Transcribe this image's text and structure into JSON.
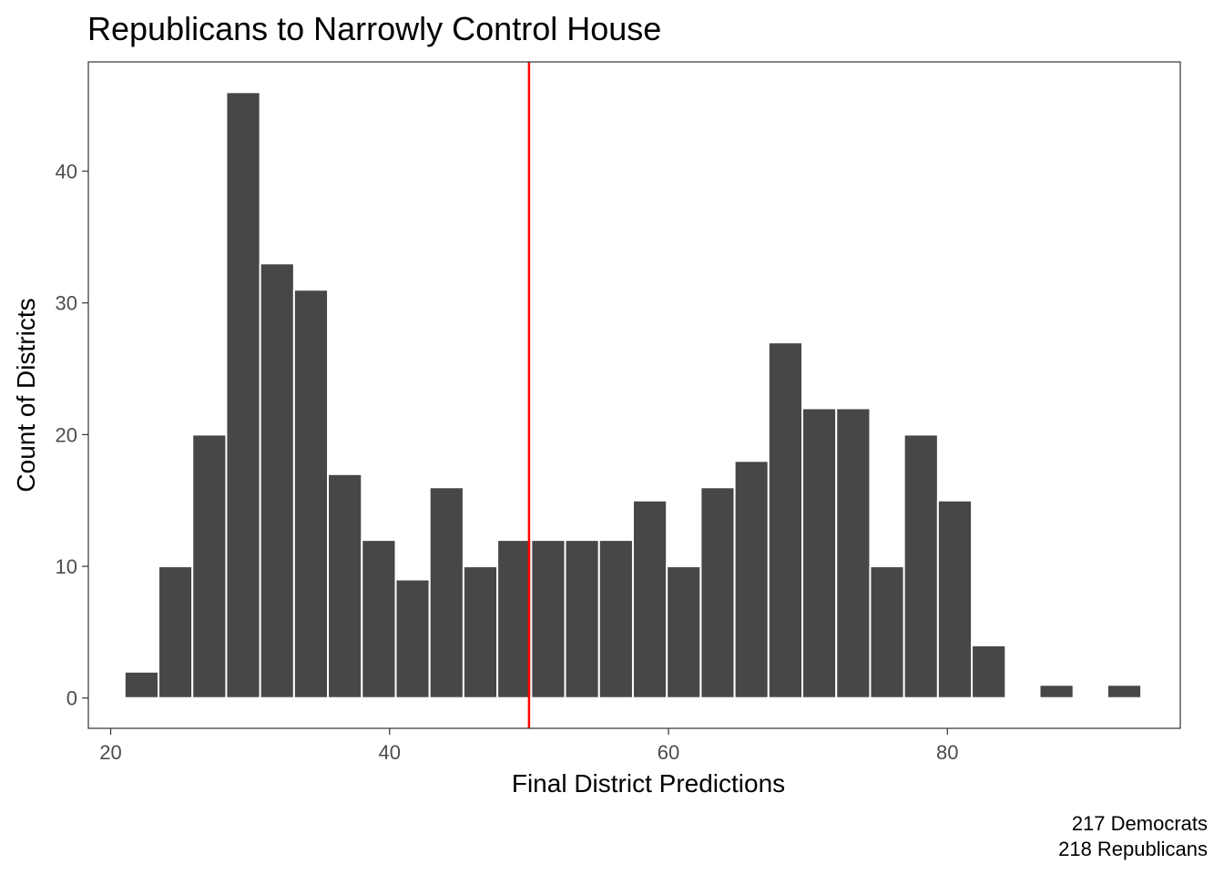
{
  "chart_data": {
    "type": "bar",
    "title": "Republicans to Narrowly Control House",
    "xlabel": "Final District Predictions",
    "ylabel": "Count of Districts",
    "caption_lines": [
      "217 Democrats",
      "218 Republicans"
    ],
    "x_ticks": [
      20,
      40,
      60,
      80
    ],
    "y_ticks": [
      0,
      10,
      20,
      30,
      40
    ],
    "xlim": [
      18.4,
      96.7
    ],
    "ylim": [
      -2.3,
      48.3
    ],
    "grid": false,
    "bin_width": 2.43,
    "bin_start": 21.0,
    "values": [
      2,
      10,
      20,
      46,
      33,
      31,
      17,
      12,
      9,
      16,
      10,
      12,
      12,
      12,
      12,
      15,
      10,
      16,
      18,
      27,
      22,
      22,
      10,
      20,
      15,
      4,
      0,
      1,
      0,
      1
    ],
    "reference_line": {
      "x": 50,
      "color": "#ff0000"
    },
    "bar_color": "#474747",
    "bar_outline": "#ffffff"
  }
}
